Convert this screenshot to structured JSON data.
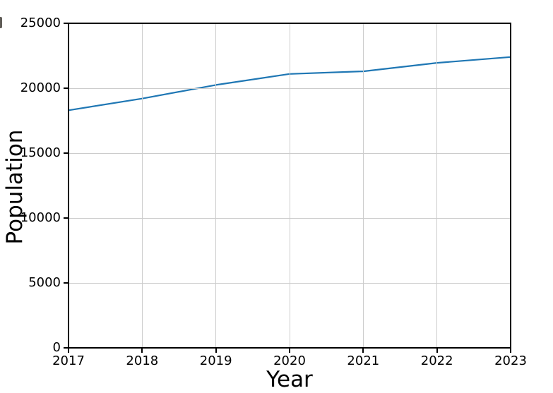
{
  "figure": {
    "xlabel": "Year",
    "ylabel": "Population"
  },
  "colors": {
    "line": "#1f77b4",
    "grid": "#cccccc",
    "spine": "#000000",
    "tick_label": "#000000",
    "background": "#ffffff",
    "artifact": "#44403a"
  },
  "chart_data": {
    "type": "line",
    "x": [
      2017,
      2018,
      2019,
      2020,
      2021,
      2022,
      2023
    ],
    "series": [
      {
        "name": "Population",
        "values": [
          18300,
          19200,
          20250,
          21100,
          21300,
          21950,
          22400
        ]
      }
    ],
    "title": "",
    "xlabel": "Year",
    "ylabel": "Population",
    "xlim": [
      2017,
      2023
    ],
    "ylim": [
      0,
      25000
    ],
    "xticks": [
      2017,
      2018,
      2019,
      2020,
      2021,
      2022,
      2023
    ],
    "yticks": [
      0,
      5000,
      10000,
      15000,
      20000,
      25000
    ],
    "grid": true,
    "legend": false,
    "line_width": 2.2
  }
}
